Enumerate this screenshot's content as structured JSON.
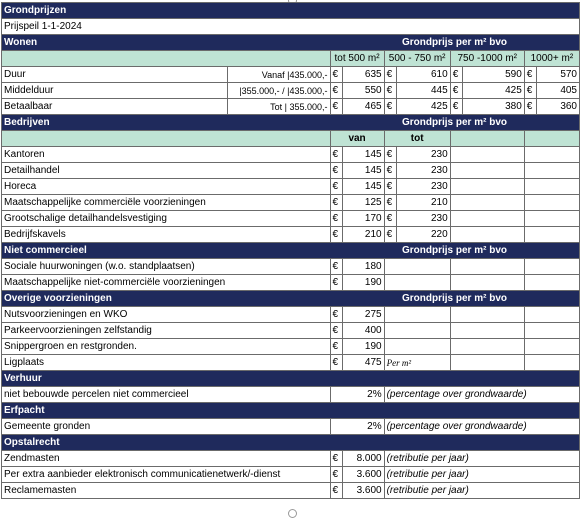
{
  "title": "Grondprijzen",
  "prijspeil": "Prijspeil 1-1-2024",
  "currency": "€",
  "colors": {
    "section_bg": "#1f2a5c",
    "section_fg": "#ffffff",
    "subheader_bg": "#bfe3d4"
  },
  "wonen": {
    "title": "Wonen",
    "head": "Grondprijs per m² bvo",
    "cols": [
      "tot 500 m²",
      "500 - 750 m²",
      "750 -1000 m²",
      "1000+ m²"
    ],
    "rows": [
      {
        "label": "Duur",
        "note": "Vanaf |435.000,-",
        "values": [
          "635",
          "610",
          "590",
          "570"
        ]
      },
      {
        "label": "Middelduur",
        "note": "|355.000,- / |435.000,-",
        "values": [
          "550",
          "445",
          "425",
          "405"
        ]
      },
      {
        "label": "Betaalbaar",
        "note": "Tot | 355.000,-",
        "values": [
          "465",
          "425",
          "380",
          "360"
        ]
      }
    ]
  },
  "bedrijven": {
    "title": "Bedrijven",
    "head": "Grondprijs per m² bvo",
    "cols": [
      "van",
      "tot"
    ],
    "rows": [
      {
        "label": "Kantoren",
        "van": "145",
        "tot": "230"
      },
      {
        "label": "Detailhandel",
        "van": "145",
        "tot": "230"
      },
      {
        "label": "Horeca",
        "van": "145",
        "tot": "230"
      },
      {
        "label": "Maatschappelijke commerciële voorzieningen",
        "van": "125",
        "tot": "210"
      },
      {
        "label": "Grootschalige detailhandelsvestiging",
        "van": "170",
        "tot": "230"
      },
      {
        "label": "Bedrijfskavels",
        "van": "210",
        "tot": "220"
      }
    ]
  },
  "niet_commercieel": {
    "title": "Niet commercieel",
    "head": "Grondprijs per m² bvo",
    "rows": [
      {
        "label": "Sociale huurwoningen (w.o. standplaatsen)",
        "value": "180"
      },
      {
        "label": "Maatschappelijke niet-commerciële voorzieningen",
        "value": "190"
      }
    ]
  },
  "overige": {
    "title": "Overige voorzieningen",
    "head": "Grondprijs per m² bvo",
    "rows": [
      {
        "label": "Nutsvoorzieningen en WKO",
        "value": "275",
        "note": ""
      },
      {
        "label": "Parkeervoorzieningen zelfstandig",
        "value": "400",
        "note": ""
      },
      {
        "label": "Snippergroen en restgronden.",
        "value": "190",
        "note": ""
      },
      {
        "label": "Ligplaats",
        "value": "475",
        "note": "Per m²"
      }
    ]
  },
  "verhuur": {
    "title": "Verhuur",
    "label": "niet bebouwde percelen niet commercieel",
    "value": "2%",
    "note": "(percentage over grondwaarde)"
  },
  "erfpacht": {
    "title": "Erfpacht",
    "label": "Gemeente gronden",
    "value": "2%",
    "note": "(percentage over grondwaarde)"
  },
  "opstalrecht": {
    "title": "Opstalrecht",
    "rows": [
      {
        "label": "Zendmasten",
        "value": "8.000",
        "note": "(retributie per jaar)"
      },
      {
        "label": "Per extra aanbieder elektronisch communicatienetwerk/-dienst",
        "value": "3.600",
        "note": "(retributie per jaar)"
      },
      {
        "label": "Reclamemasten",
        "value": "3.600",
        "note": "(retributie per jaar)"
      }
    ]
  }
}
